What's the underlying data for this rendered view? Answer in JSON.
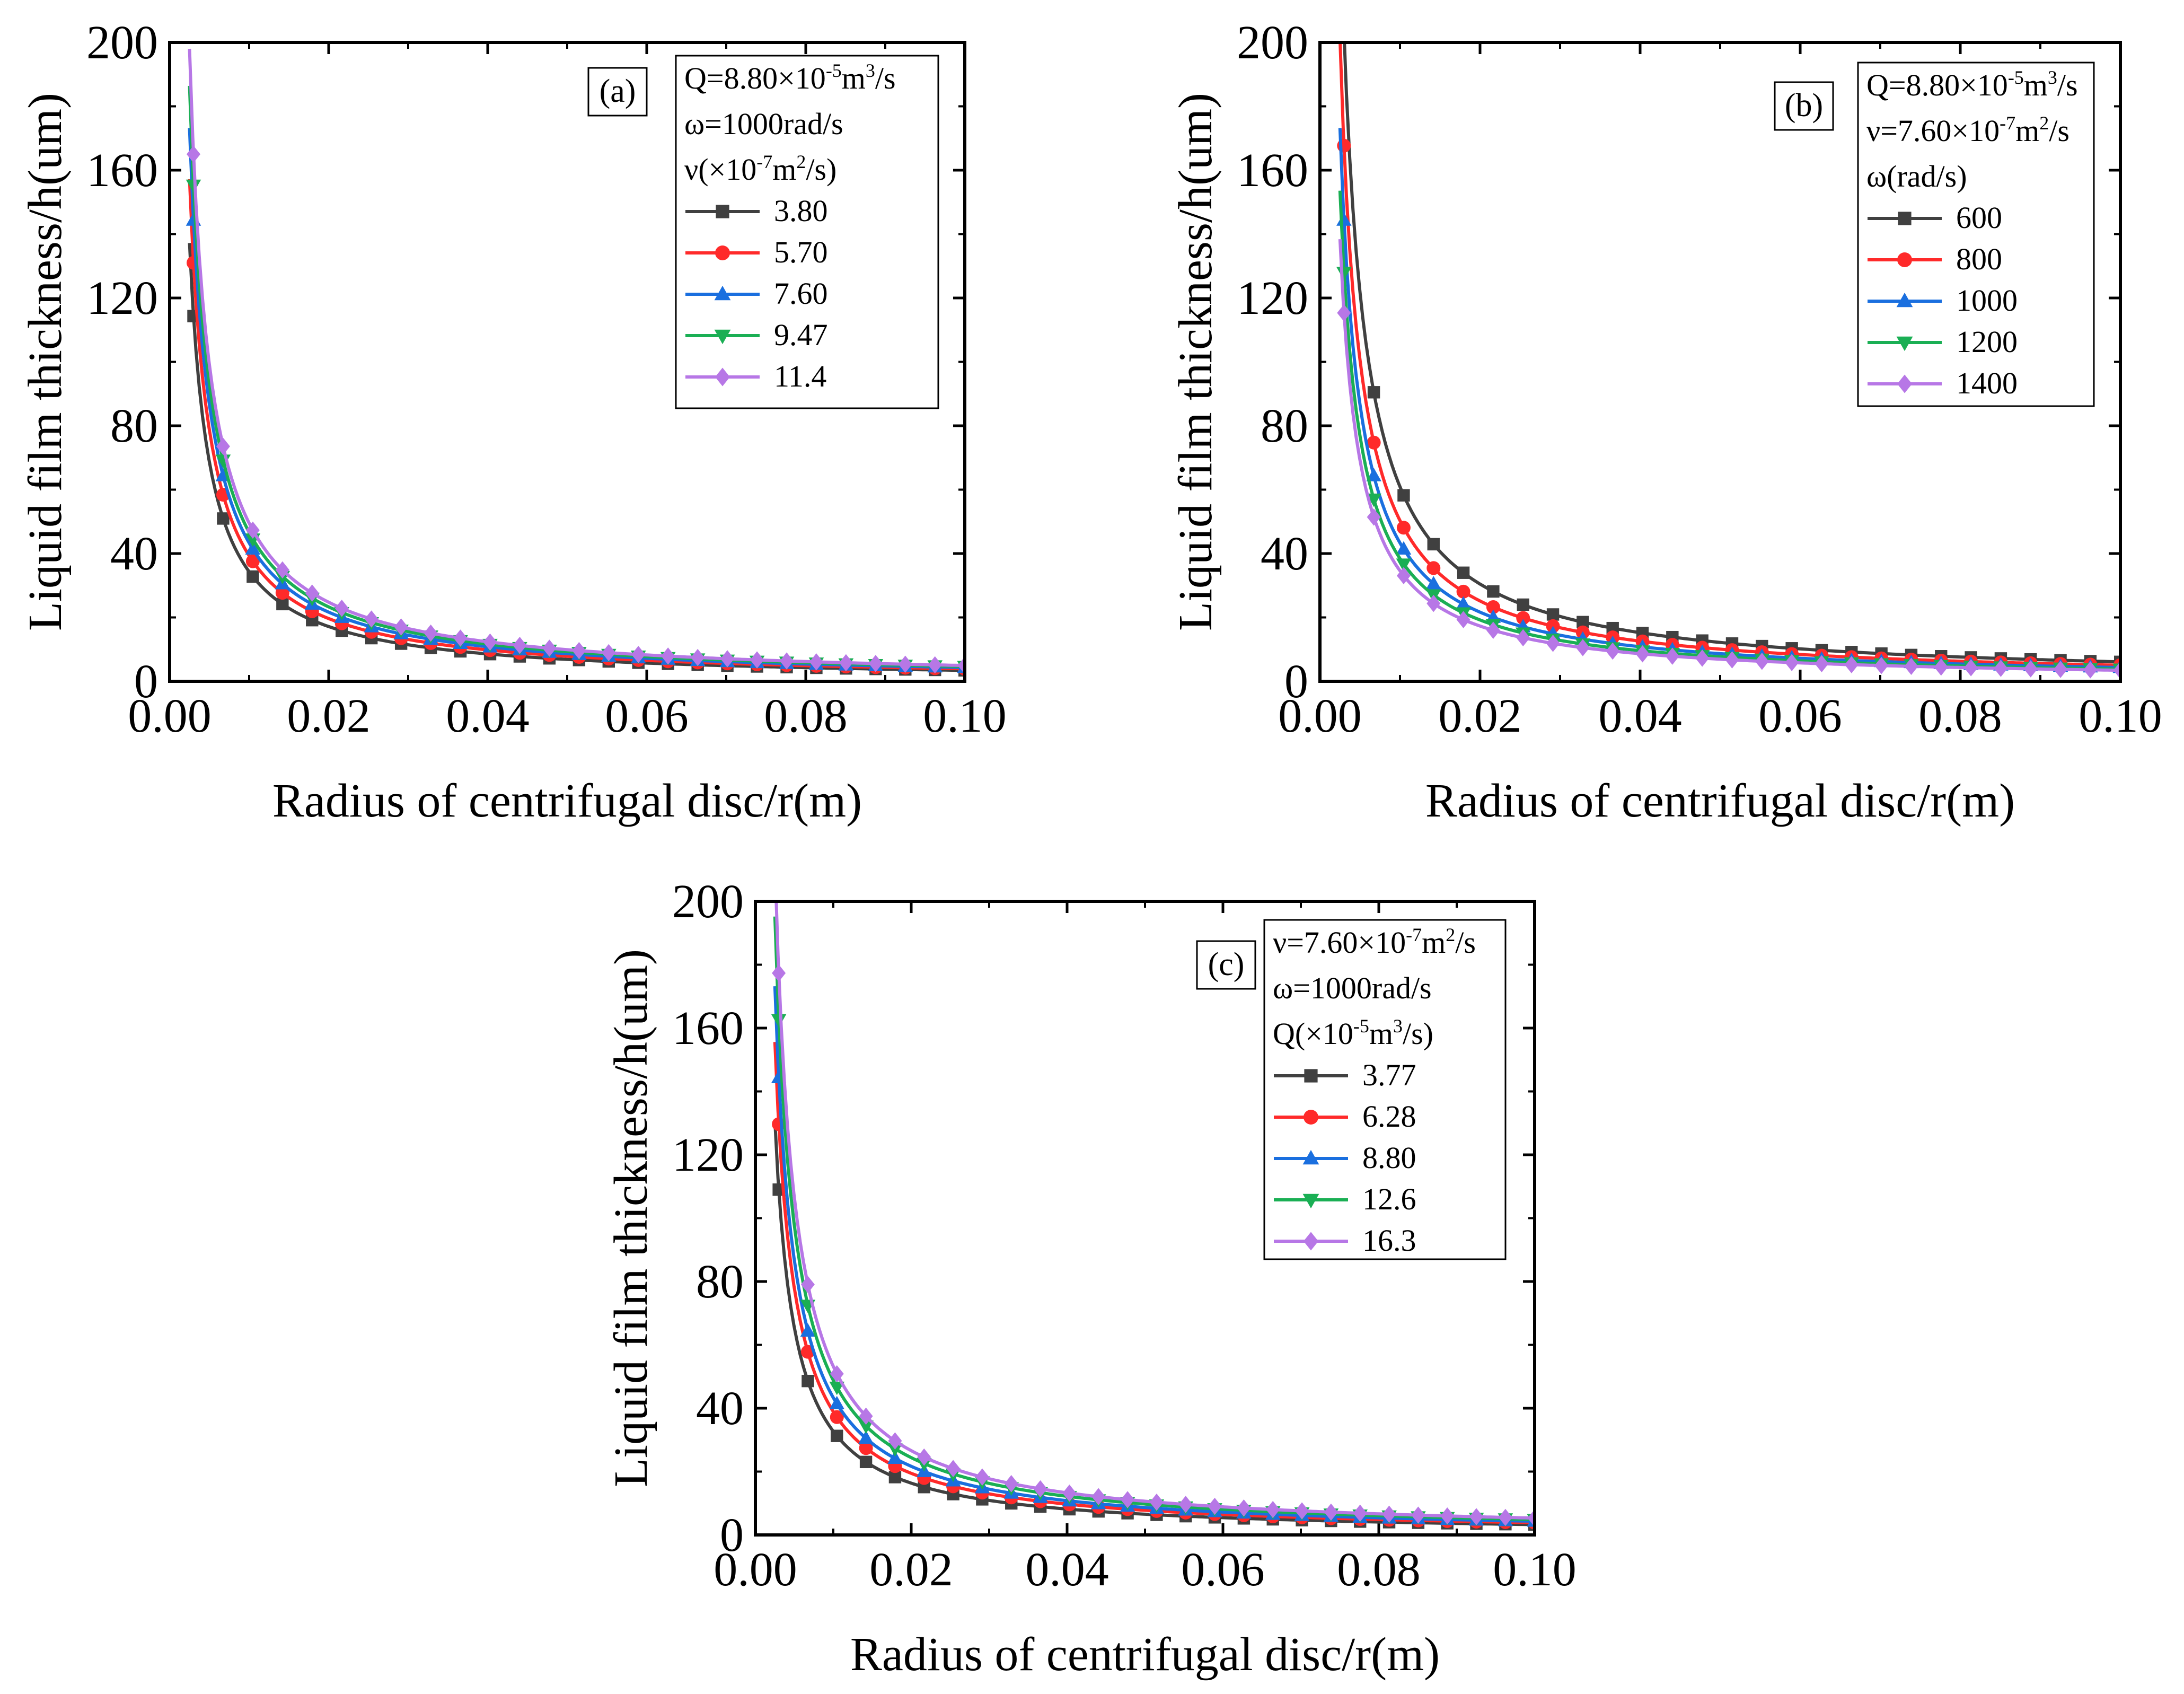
{
  "chart_data": [
    {
      "type": "line",
      "panel_label": "(a)",
      "xlabel": "Radius of centrifugal disc/r(m)",
      "ylabel": "Liquid film thickness/h(um)",
      "xlim": [
        0,
        0.1
      ],
      "ylim": [
        0,
        200
      ],
      "xticks": [
        "0.00",
        "0.02",
        "0.04",
        "0.06",
        "0.08",
        "0.10"
      ],
      "yticks": [
        "0",
        "40",
        "80",
        "120",
        "160",
        "200"
      ],
      "legend_position": "top-right",
      "legend_header": [
        {
          "base": "Q=8.80×10",
          "sup": "-5",
          "tail": "m",
          "sup2": "3",
          "tail2": "/s"
        },
        {
          "base": "ω=1000rad/s"
        },
        {
          "base": "ν(×10",
          "sup": "-7",
          "tail": "m",
          "sup2": "2",
          "tail2": "/s)"
        }
      ],
      "series": [
        {
          "name": "3.80",
          "color": "#404040",
          "marker": "square",
          "k": 0.343
        },
        {
          "name": "5.70",
          "color": "#ff2a2a",
          "marker": "circle",
          "k": 0.393
        },
        {
          "name": "7.60",
          "color": "#1a6fdf",
          "marker": "triangle-up",
          "k": 0.433
        },
        {
          "name": "9.47",
          "color": "#1aaf54",
          "marker": "triangle-down",
          "k": 0.466
        },
        {
          "name": "11.4",
          "color": "#b777e6",
          "marker": "diamond",
          "k": 0.495
        }
      ]
    },
    {
      "type": "line",
      "panel_label": "(b)",
      "xlabel": "Radius of centrifugal disc/r(m)",
      "ylabel": "Liquid film thickness/h(um)",
      "xlim": [
        0,
        0.1
      ],
      "ylim": [
        0,
        200
      ],
      "xticks": [
        "0.00",
        "0.02",
        "0.04",
        "0.06",
        "0.08",
        "0.10"
      ],
      "yticks": [
        "0",
        "40",
        "80",
        "120",
        "160",
        "200"
      ],
      "legend_position": "top-right",
      "legend_header": [
        {
          "base": "Q=8.80×10",
          "sup": "-5",
          "tail": "m",
          "sup2": "3",
          "tail2": "/s"
        },
        {
          "base": "ν=7.60×10",
          "sup": "-7",
          "tail": "m",
          "sup2": "2",
          "tail2": "/s"
        },
        {
          "base": "ω(rad/s)"
        }
      ],
      "series": [
        {
          "name": "600",
          "color": "#404040",
          "marker": "square",
          "k": 0.609
        },
        {
          "name": "800",
          "color": "#ff2a2a",
          "marker": "circle",
          "k": 0.503
        },
        {
          "name": "1000",
          "color": "#1a6fdf",
          "marker": "triangle-up",
          "k": 0.433
        },
        {
          "name": "1200",
          "color": "#1aaf54",
          "marker": "triangle-down",
          "k": 0.384
        },
        {
          "name": "1400",
          "color": "#b777e6",
          "marker": "diamond",
          "k": 0.346
        }
      ]
    },
    {
      "type": "line",
      "panel_label": "(c)",
      "xlabel": "Radius of centrifugal disc/r(m)",
      "ylabel": "Liquid film thickness/h(um)",
      "xlim": [
        0,
        0.1
      ],
      "ylim": [
        0,
        200
      ],
      "xticks": [
        "0.00",
        "0.02",
        "0.04",
        "0.06",
        "0.08",
        "0.10"
      ],
      "yticks": [
        "0",
        "40",
        "80",
        "120",
        "160",
        "200"
      ],
      "legend_position": "top-right",
      "legend_header": [
        {
          "base": "ν=7.60×10",
          "sup": "-7",
          "tail": "m",
          "sup2": "2",
          "tail2": "/s"
        },
        {
          "base": "ω=1000rad/s"
        },
        {
          "base": "Q(×10",
          "sup": "-5",
          "tail": "m",
          "sup2": "3",
          "tail2": "/s)"
        }
      ],
      "series": [
        {
          "name": "3.77",
          "color": "#404040",
          "marker": "square",
          "k": 0.327
        },
        {
          "name": "6.28",
          "color": "#ff2a2a",
          "marker": "circle",
          "k": 0.389
        },
        {
          "name": "8.80",
          "color": "#1a6fdf",
          "marker": "triangle-up",
          "k": 0.433
        },
        {
          "name": "12.6",
          "color": "#1aaf54",
          "marker": "triangle-down",
          "k": 0.488
        },
        {
          "name": "16.3",
          "color": "#b777e6",
          "marker": "diamond",
          "k": 0.532
        }
      ]
    }
  ]
}
